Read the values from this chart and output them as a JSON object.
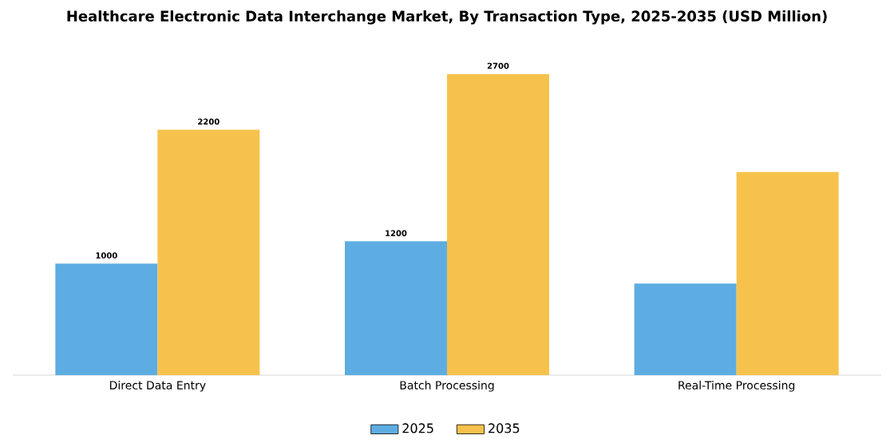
{
  "chart_data": {
    "type": "bar",
    "title": "Healthcare Electronic Data Interchange Market, By Transaction Type, 2025-2035 (USD Million)",
    "categories": [
      "Direct Data Entry",
      "Batch Processing",
      "Real-Time Processing"
    ],
    "series": [
      {
        "name": "2025",
        "color": "#5dade2",
        "values": [
          1000,
          1200,
          820
        ],
        "value_labels": [
          "1000",
          "1200",
          null
        ]
      },
      {
        "name": "2035",
        "color": "#f7c24c",
        "values": [
          2200,
          2700,
          1820
        ],
        "value_labels": [
          "2200",
          "2700",
          null
        ]
      }
    ],
    "legend": "bottom"
  }
}
